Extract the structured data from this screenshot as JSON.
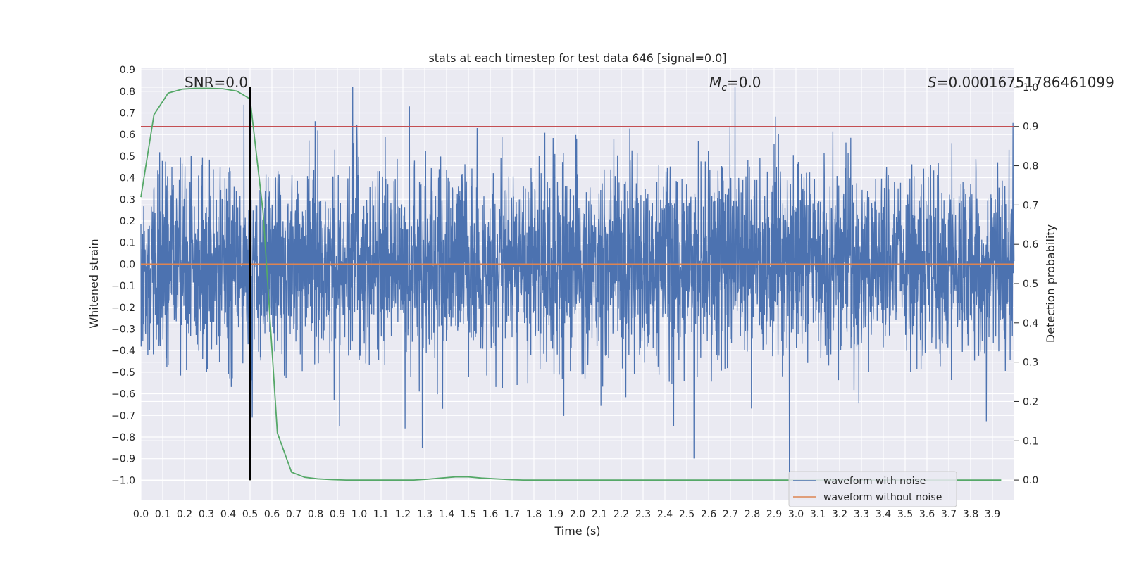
{
  "chart_data": {
    "type": "line",
    "title": "stats at each timestep for test data 646 [signal=0.0]",
    "xlabel": "Time (s)",
    "ylabel": "Whitened strain",
    "y2label": "Detection probability",
    "xlim": [
      0.0,
      4.0
    ],
    "ylim": [
      -1.09,
      0.91
    ],
    "y2lim": [
      -0.05,
      1.05
    ],
    "x_ticks": [
      0.0,
      0.1,
      0.2,
      0.3,
      0.4,
      0.5,
      0.6,
      0.7,
      0.8,
      0.9,
      1.0,
      1.1,
      1.2,
      1.3,
      1.4,
      1.5,
      1.6,
      1.7,
      1.8,
      1.9,
      2.0,
      2.1,
      2.2,
      2.3,
      2.4,
      2.5,
      2.6,
      2.7,
      2.8,
      2.9,
      3.0,
      3.1,
      3.2,
      3.3,
      3.4,
      3.5,
      3.6,
      3.7,
      3.8,
      3.9
    ],
    "x_tick_labels": [
      "0.0",
      "0.1",
      "0.2",
      "0.3",
      "0.4",
      "0.5",
      "0.6",
      "0.7",
      "0.8",
      "0.9",
      "1.0",
      "1.1",
      "1.2",
      "1.3",
      "1.4",
      "1.5",
      "1.6",
      "1.7",
      "1.8",
      "1.9",
      "2.0",
      "2.1",
      "2.2",
      "2.3",
      "2.4",
      "2.5",
      "2.6",
      "2.7",
      "2.8",
      "2.9",
      "3.0",
      "3.1",
      "3.2",
      "3.3",
      "3.4",
      "3.5",
      "3.6",
      "3.7",
      "3.8",
      "3.9"
    ],
    "y_ticks": [
      0.9,
      0.8,
      0.7,
      0.6,
      0.5,
      0.4,
      0.3,
      0.2,
      0.1,
      0.0,
      -0.1,
      -0.2,
      -0.3,
      -0.4,
      -0.5,
      -0.6,
      -0.7,
      -0.8,
      -0.9,
      -1.0
    ],
    "y_tick_labels": [
      "0.9",
      "0.8",
      "0.7",
      "0.6",
      "0.5",
      "0.4",
      "0.3",
      "0.2",
      "0.1",
      "0.0",
      "−0.1",
      "−0.2",
      "−0.3",
      "−0.4",
      "−0.5",
      "−0.6",
      "−0.7",
      "−0.8",
      "−0.9",
      "−1.0"
    ],
    "y2_ticks": [
      1.0,
      0.9,
      0.8,
      0.7,
      0.6,
      0.5,
      0.4,
      0.3,
      0.2,
      0.1,
      0.0
    ],
    "y2_tick_labels": [
      "1.0",
      "0.9",
      "0.8",
      "0.7",
      "0.6",
      "0.5",
      "0.4",
      "0.3",
      "0.2",
      "0.1",
      "0.0"
    ],
    "grid": true,
    "legend_position": "lower-right",
    "annotations": {
      "snr": "SNR=0.0",
      "mc_symbol": "M",
      "mc_subscript": "c",
      "mc_value": "=0.0",
      "s_symbol": "S",
      "s_value": "=0.00016751786461099"
    },
    "series": [
      {
        "name": "waveform with noise",
        "color": "#4c72b0",
        "axis": "left",
        "kind": "noise",
        "sample_rate": 1000,
        "approx_range": [
          -1.0,
          0.82
        ],
        "spikes": [
          [
            0.97,
            0.82
          ],
          [
            1.23,
            0.73
          ],
          [
            2.97,
            -1.0
          ],
          [
            0.91,
            -0.75
          ],
          [
            1.21,
            -0.76
          ],
          [
            2.44,
            -0.75
          ],
          [
            0.51,
            -0.71
          ]
        ]
      },
      {
        "name": "waveform without noise",
        "color": "#dd8452",
        "axis": "left",
        "x": [
          0.0,
          4.0
        ],
        "values": [
          0.0,
          0.0
        ]
      },
      {
        "name": "detection probability",
        "color": "#55a868",
        "axis": "right",
        "x": [
          0.0,
          0.06,
          0.125,
          0.19,
          0.25,
          0.31,
          0.375,
          0.44,
          0.5,
          0.56,
          0.625,
          0.69,
          0.75,
          0.81,
          0.875,
          0.94,
          1.0,
          1.06,
          1.125,
          1.19,
          1.25,
          1.31,
          1.375,
          1.44,
          1.5,
          1.56,
          1.625,
          1.69,
          1.75,
          1.81,
          1.875,
          1.94,
          2.0,
          2.5,
          3.0,
          3.5,
          3.94
        ],
        "values": [
          0.72,
          0.93,
          0.985,
          0.995,
          0.997,
          0.997,
          0.996,
          0.99,
          0.97,
          0.68,
          0.12,
          0.02,
          0.007,
          0.003,
          0.001,
          0.0,
          0.0,
          0.0,
          0.0,
          0.0,
          0.0,
          0.002,
          0.005,
          0.008,
          0.008,
          0.005,
          0.003,
          0.001,
          0.0,
          0.0,
          0.0,
          0.0,
          0.0,
          0.0,
          0.0,
          0.0,
          0.0
        ]
      }
    ],
    "reference_lines": {
      "threshold": {
        "axis": "right",
        "value": 0.9,
        "color": "#c44e52"
      },
      "marker": {
        "x": 0.5,
        "from": -1.0,
        "to": 0.82,
        "color": "#000000"
      }
    }
  }
}
